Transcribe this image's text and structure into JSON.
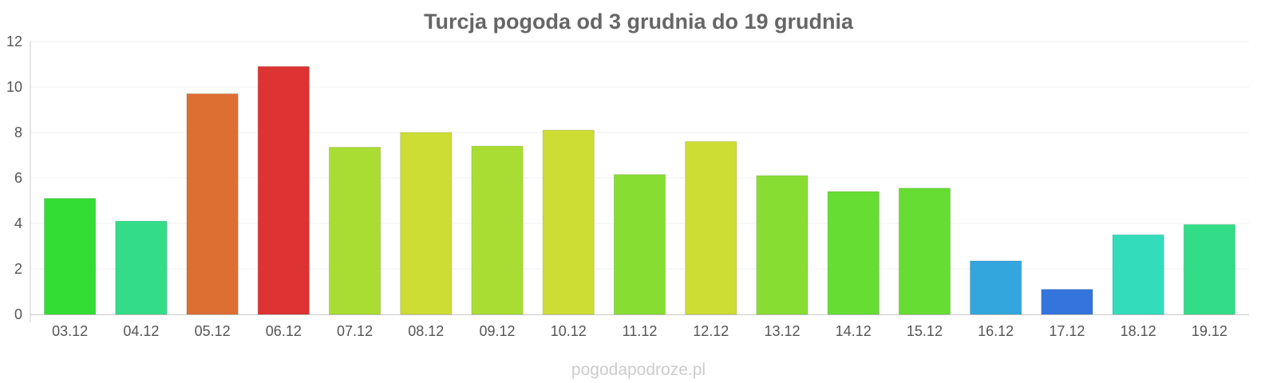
{
  "chart_data": {
    "type": "bar",
    "title": "Turcja pogoda od 3 grudnia do 19 grudnia",
    "xlabel": "",
    "ylabel": "",
    "categories": [
      "03.12",
      "04.12",
      "05.12",
      "06.12",
      "07.12",
      "08.12",
      "09.12",
      "10.12",
      "11.12",
      "12.12",
      "13.12",
      "14.12",
      "15.12",
      "16.12",
      "17.12",
      "18.12",
      "19.12"
    ],
    "values": [
      5.1,
      4.1,
      9.7,
      10.9,
      7.35,
      8.0,
      7.4,
      8.1,
      6.15,
      7.6,
      6.1,
      5.4,
      5.55,
      2.35,
      1.1,
      3.5,
      3.95
    ],
    "colors": [
      "#33dd33",
      "#33dd88",
      "#dd6f33",
      "#dd3333",
      "#aadd33",
      "#cddd33",
      "#aadd33",
      "#cddd33",
      "#88dd33",
      "#cddd33",
      "#88dd33",
      "#66dd33",
      "#66dd33",
      "#33a6dd",
      "#3375dd",
      "#33ddbb",
      "#33dd88"
    ],
    "ylim": [
      0,
      12
    ],
    "yticks": [
      0,
      2,
      4,
      6,
      8,
      10,
      12
    ],
    "grid": true,
    "legend": "none"
  },
  "watermark": "pogodapodroze.pl"
}
